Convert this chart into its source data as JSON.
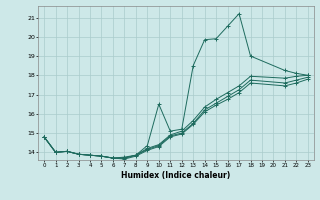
{
  "xlabel": "Humidex (Indice chaleur)",
  "bg_color": "#cde8e8",
  "grid_color": "#aacccc",
  "line_color": "#1e6b5e",
  "xlim": [
    -0.5,
    23.5
  ],
  "ylim": [
    13.6,
    21.6
  ],
  "yticks": [
    14,
    15,
    16,
    17,
    18,
    19,
    20,
    21
  ],
  "xticks": [
    0,
    1,
    2,
    3,
    4,
    5,
    6,
    7,
    8,
    9,
    10,
    11,
    12,
    13,
    14,
    15,
    16,
    17,
    18,
    19,
    20,
    21,
    22,
    23
  ],
  "line1_x": [
    0,
    1,
    2,
    3,
    4,
    5,
    6,
    7,
    8,
    9,
    10,
    11,
    12,
    13,
    14,
    15,
    16,
    17,
    18,
    21,
    22,
    23
  ],
  "line1_y": [
    14.8,
    14.0,
    14.05,
    13.9,
    13.85,
    13.8,
    13.7,
    13.75,
    13.85,
    14.35,
    16.5,
    15.1,
    15.2,
    18.5,
    19.85,
    19.9,
    20.55,
    21.2,
    19.0,
    18.25,
    18.1,
    18.0
  ],
  "line2_x": [
    0,
    1,
    2,
    3,
    4,
    5,
    6,
    7,
    8,
    9,
    10,
    11,
    12,
    13,
    14,
    15,
    16,
    17,
    18,
    21,
    22,
    23
  ],
  "line2_y": [
    14.8,
    14.0,
    14.05,
    13.9,
    13.85,
    13.8,
    13.7,
    13.7,
    13.85,
    14.2,
    14.4,
    14.9,
    15.1,
    15.65,
    16.35,
    16.75,
    17.1,
    17.45,
    17.95,
    17.85,
    17.95,
    18.0
  ],
  "line3_x": [
    0,
    1,
    2,
    3,
    4,
    5,
    6,
    7,
    8,
    9,
    10,
    11,
    12,
    13,
    14,
    15,
    16,
    17,
    18,
    21,
    22,
    23
  ],
  "line3_y": [
    14.8,
    14.0,
    14.05,
    13.9,
    13.85,
    13.8,
    13.7,
    13.7,
    13.85,
    14.15,
    14.35,
    14.85,
    15.0,
    15.5,
    16.2,
    16.55,
    16.9,
    17.25,
    17.75,
    17.6,
    17.75,
    17.9
  ],
  "line4_x": [
    0,
    1,
    2,
    3,
    4,
    5,
    6,
    7,
    8,
    9,
    10,
    11,
    12,
    13,
    14,
    15,
    16,
    17,
    18,
    21,
    22,
    23
  ],
  "line4_y": [
    14.8,
    14.0,
    14.05,
    13.9,
    13.85,
    13.8,
    13.7,
    13.65,
    13.8,
    14.1,
    14.3,
    14.8,
    14.95,
    15.45,
    16.1,
    16.45,
    16.75,
    17.1,
    17.6,
    17.45,
    17.6,
    17.8
  ]
}
